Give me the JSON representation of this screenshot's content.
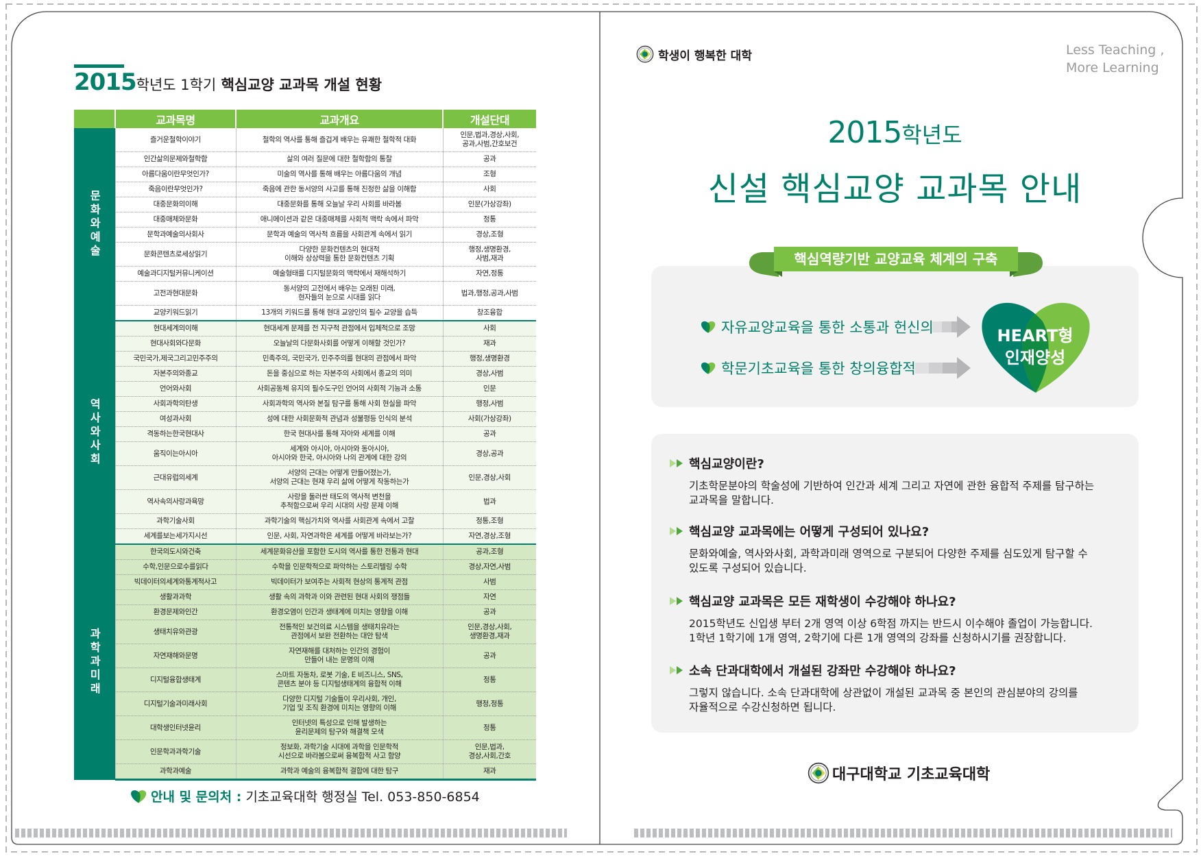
{
  "left": {
    "title": {
      "year": "2015",
      "suffix": "학년도 1학기",
      "rest": " 핵심교양 교과목 개설 현황"
    },
    "table": {
      "headers": [
        "",
        "교과목명",
        "교과개요",
        "개설단대"
      ],
      "groups": [
        {
          "category": "문화와예술",
          "rows": [
            {
              "name": "즐거운철학이야기",
              "summary": "철학의 역사를 통해 즐겁게 배우는 유쾌한 철학적 대화",
              "college": "인문,법과,경상,사회,\n공과,사범,간호보건"
            },
            {
              "name": "인간삶의문제와철학함",
              "summary": "삶의 여러 질문에 대한 철학함의 통찰",
              "college": "공과"
            },
            {
              "name": "아름다움이란무엇인가?",
              "summary": "미술의 역사를 통해 배우는 아름다움의 개념",
              "college": "조형"
            },
            {
              "name": "죽음이란무엇인가?",
              "summary": "죽음에 관한 동서양의 사고를 통해 진정한 삶을 이해함",
              "college": "사회"
            },
            {
              "name": "대중문화의이해",
              "summary": "대중문화를 통해 오늘날 우리 사회를 바라봄",
              "college": "인문(가상강좌)"
            },
            {
              "name": "대중매체와문화",
              "summary": "애니메이션과 같은 대중매체를 사회적 맥락 속에서 파악",
              "college": "정통"
            },
            {
              "name": "문학과예술의사회사",
              "summary": "문학과 예술의 역사적 흐름을 사회관계 속에서 읽기",
              "college": "경상,조형"
            },
            {
              "name": "문화콘텐츠로세상읽기",
              "summary": "다양한 문화컨텐츠의 현대적\n이해와 상상력을 통한 문화컨텐츠 기획",
              "college": "행정,생명환경,\n사범,재과"
            },
            {
              "name": "예술과디지털커뮤니케이션",
              "summary": "예술형태를 디지털문화의 맥락에서 재해석하기",
              "college": "자연,정통"
            },
            {
              "name": "고전과현대문화",
              "summary": "동서양의 고전에서 배우는 오래된 미래,\n현자들의 눈으로 시대를 읽다",
              "college": "법과,행정,공과,사범"
            },
            {
              "name": "교양키워드읽기",
              "summary": "13개의 키워드를 통해 현대 교양인의 필수 교양을 습득",
              "college": "창조융합"
            }
          ]
        },
        {
          "category": "역사와사회",
          "rows": [
            {
              "name": "현대세계의이해",
              "summary": "현대세계 문제를 전 지구적 관점에서 입체적으로 조망",
              "college": "사회"
            },
            {
              "name": "현대사회와다문화",
              "summary": "오늘날의 다문화사회를 어떻게 이해할 것인가?",
              "college": "재과"
            },
            {
              "name": "국민국가,제국그리고민주주의",
              "summary": "민족주의, 국민국가, 민주주의를 현대의 관점에서 파악",
              "college": "행정,생명환경"
            },
            {
              "name": "자본주의와종교",
              "summary": "돈을 중심으로 하는 자본주의 사회에서 종교의 의미",
              "college": "경상,사범"
            },
            {
              "name": "언어와사회",
              "summary": "사회공동체 유지의 필수도구인 언어의 사회적 기능과 소통",
              "college": "인문"
            },
            {
              "name": "사회과학의탄생",
              "summary": "사회과학의 역사와 본질 탐구를 통해 사회 현실을 파악",
              "college": "행정,사범"
            },
            {
              "name": "여성과사회",
              "summary": "성에 대한 사회문화적 관념과 성불평등 인식의 분석",
              "college": "사회(가상강좌)"
            },
            {
              "name": "격동하는한국현대사",
              "summary": "한국 현대사를 통해 자아와 세계를 이해",
              "college": "공과"
            },
            {
              "name": "움직이는아시아",
              "summary": "세계와 아시아, 아시아와 동아시아,\n아시아와 한국, 아시아와 나의 관계에 대한 강의",
              "college": "경상,공과"
            },
            {
              "name": "근대유럽의세계",
              "summary": "서양의 근대는 어떻게 만들어졌는가,\n서양의 근대는 현재 우리 삶에 어떻게 작동하는가",
              "college": "인문,경상,사회"
            },
            {
              "name": "역사속의사랑과욕망",
              "summary": "사랑을 둘러싼 태도의 역사적 변천을\n추적함으로써 우리 시대의 사랑 문제 이해",
              "college": "법과"
            },
            {
              "name": "과학기술사회",
              "summary": "과학기술의 핵심가치와 역사를 사회관계 속에서 고찰",
              "college": "정통,조형"
            },
            {
              "name": "세계를보는세가지시선",
              "summary": "인문, 사회, 자연과학은 세계를 어떻게 바라보는가?",
              "college": "자연,경상,조형"
            }
          ]
        },
        {
          "category": "과학과미래",
          "rows": [
            {
              "name": "한국의도시와건축",
              "summary": "세계문화유산을 포함한 도시의 역사를 통한 전통과 현대",
              "college": "공과,조형"
            },
            {
              "name": "수학,인문으로수를읽다",
              "summary": "수학을 인문학적으로 파악하는 스토리텔링 수학",
              "college": "경상,자연,사범"
            },
            {
              "name": "빅데이터의세계와통계적사고",
              "summary": "빅데이터가 보여주는 사회적 현상의 통계적 관점",
              "college": "사범"
            },
            {
              "name": "생활과과학",
              "summary": "생활 속의 과학과 이와 관련된 현대 사회의 쟁점들",
              "college": "자연"
            },
            {
              "name": "환경문제와인간",
              "summary": "환경오염이 인간과 생태계에 미치는 영향을 이해",
              "college": "공과"
            },
            {
              "name": "생태치유와관광",
              "summary": "전통적인 보건의료 시스템을 생태치유라는\n관점에서 보완 전환하는 대안 탐색",
              "college": "인문,경상,사회,\n생명환경,재과"
            },
            {
              "name": "자연재해와문명",
              "summary": "자연재해를 대처하는 인간의 경험이\n만들어 내는 문명의 이해",
              "college": "공과"
            },
            {
              "name": "디지털융합생태계",
              "summary": "스마트 자동차, 로봇 기술, E 비즈니스, SNS,\n콘텐츠 분야 등 디지털생태계의 융합적 이해",
              "college": "정통"
            },
            {
              "name": "디지털기술과미래사회",
              "summary": "다양한 디지털 기술들이 우리사회, 개인,\n기업 및 조직 환경에 미치는 영향의 이해",
              "college": "행정,정통"
            },
            {
              "name": "대학생인터넷윤리",
              "summary": "인터넷의 특성으로 인해 발생하는\n윤리문제의 탐구와 해결책 모색",
              "college": "정통"
            },
            {
              "name": "인문학과과학기술",
              "summary": "정보화, 과학기술 시대에 과학을 인문학적\n시선으로 바라봄으로써 융복합적 사고 함양",
              "college": "인문,법과,\n경상,사회,간호"
            },
            {
              "name": "과학과예술",
              "summary": "과학과 예술의 융복합적 결합에 대한 탐구",
              "college": "재과"
            }
          ]
        }
      ]
    },
    "contact": {
      "label": "안내 및 문의처 :",
      "value": "기초교육대학 행정실 Tel. 053-850-6854"
    }
  },
  "right": {
    "slogan": "학생이 행복한 대학",
    "motto": [
      "Less Teaching ,",
      "More Learning"
    ],
    "title_year": "2015",
    "title_year_suffix": "학년도",
    "title_main": "신설 핵심교양 교과목 안내",
    "ribbon": "핵심역량기반 교양교육 체계의 구축",
    "bullets": [
      "자유교양교육을 통한 소통과 헌신의",
      "학문기초교육을 통한 창의융합적"
    ],
    "heart_text": [
      "HEART형",
      "인재양성"
    ],
    "faq": [
      {
        "q": "핵심교양이란?",
        "a": "기초학문분야의 학술성에 기반하여 인간과 세계 그리고 자연에 관한 융합적 주제를 탐구하는\n교과목을 말합니다."
      },
      {
        "q": "핵심교양 교과목에는 어떻게 구성되어 있나요?",
        "a": "문화와예술, 역사와사회, 과학과미래 영역으로 구분되어 다양한 주제를 심도있게 탐구할 수\n있도록 구성되어 있습니다."
      },
      {
        "q": "핵심교양 교과목은 모든 재학생이 수강해야 하나요?",
        "a": "2015학년도 신입생 부터 2개 영역 이상 6학점 까지는 반드시 이수해야 졸업이 가능합니다.\n1학년 1학기에 1개 영역, 2학기에 다른 1개 영역의 강좌를 신청하시기를 권장합니다."
      },
      {
        "q": "소속 단과대학에서 개설된 강좌만 수강해야 하나요?",
        "a": "그렇지 않습니다. 소속 단과대학에 상관없이 개설된 교과목 중 본인의 관심분야의 강의를\n자율적으로 수강신청하면 됩니다."
      }
    ],
    "footer_logo": "대구대학교 기초교육대학"
  },
  "colors": {
    "teal": "#00806a",
    "green": "#7bc143",
    "light_green_row": "#d5e8c4",
    "panel": "#f2f2f2",
    "stripe": "#bcbdc0"
  },
  "icons": [
    "university-seal-icon",
    "heart-leaf-icon",
    "double-arrow-bullet-icon",
    "gray-arrow-icon"
  ]
}
